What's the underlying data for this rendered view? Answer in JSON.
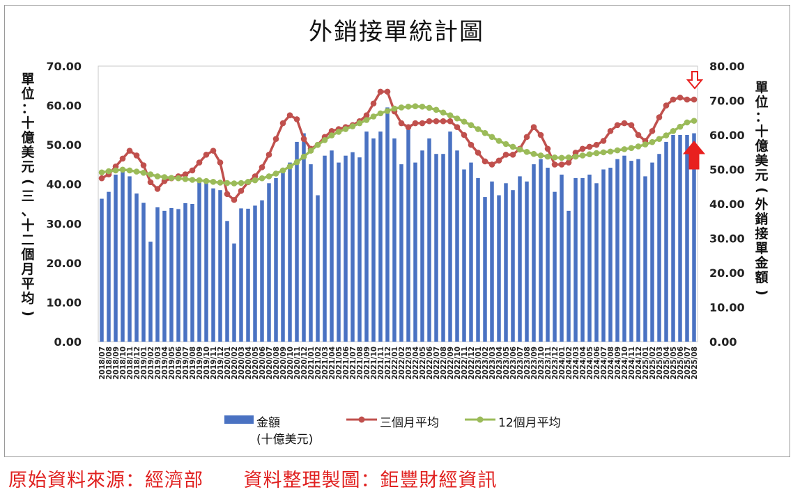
{
  "chart_data": {
    "type": "bar",
    "title": "外銷接單統計圖",
    "ylabel_left": "單位：十億美元(三、十二個月平均)",
    "ylabel_right": "單位：十億美元(外銷接單金額)",
    "ylim_left": [
      0,
      70
    ],
    "ylim_right": [
      0,
      80
    ],
    "yticks_left": [
      "0.00",
      "10.00",
      "20.00",
      "30.00",
      "40.00",
      "50.00",
      "60.00",
      "70.00"
    ],
    "yticks_right": [
      "0.00",
      "10.00",
      "20.00",
      "30.00",
      "40.00",
      "50.00",
      "60.00",
      "70.00",
      "80.00"
    ],
    "categories": [
      "2018/07",
      "2018/08",
      "2018/09",
      "2018/10",
      "2018/11",
      "2018/12",
      "2019/01",
      "2019/02",
      "2019/03",
      "2019/04",
      "2019/05",
      "2019/06",
      "2019/07",
      "2019/08",
      "2019/09",
      "2019/10",
      "2019/11",
      "2019/12",
      "2020/01",
      "2020/02",
      "2020/03",
      "2020/04",
      "2020/05",
      "2020/06",
      "2020/07",
      "2020/08",
      "2020/09",
      "2020/10",
      "2020/11",
      "2020/12",
      "2021/01",
      "2021/02",
      "2021/03",
      "2021/04",
      "2021/05",
      "2021/06",
      "2021/07",
      "2021/08",
      "2021/09",
      "2021/10",
      "2021/11",
      "2021/12",
      "2022/01",
      "2022/02",
      "2022/03",
      "2022/04",
      "2022/05",
      "2022/06",
      "2022/07",
      "2022/08",
      "2022/09",
      "2022/10",
      "2022/11",
      "2022/12",
      "2023/01",
      "2023/02",
      "2023/03",
      "2023/04",
      "2023/05",
      "2023/06",
      "2023/07",
      "2023/08",
      "2023/09",
      "2023/10",
      "2023/11",
      "2023/12",
      "2024/01",
      "2024/02",
      "2024/03",
      "2024/04",
      "2024/05",
      "2024/06",
      "2024/07",
      "2024/08",
      "2024/09",
      "2024/10",
      "2024/11",
      "2024/12",
      "2025/01",
      "2025/02",
      "2025/03",
      "2025/04",
      "2025/05",
      "2025/06",
      "2025/07",
      "2025/08"
    ],
    "series": [
      {
        "name": "金額 (十億美元)",
        "axis": "right",
        "type": "bar",
        "color": "#4a72c2",
        "values": [
          41.5,
          43.5,
          48.5,
          49.5,
          48,
          43,
          40.3,
          29,
          39,
          38,
          38.8,
          38.5,
          40.2,
          40,
          47,
          46,
          44.5,
          44,
          35,
          28.5,
          38.7,
          38.6,
          39.5,
          41,
          46,
          47.5,
          50,
          52,
          58,
          60.5,
          51.5,
          42.5,
          54,
          55.5,
          52,
          54,
          55,
          53.5,
          61,
          59,
          61,
          68,
          59,
          51.5,
          63,
          52,
          55.5,
          59,
          54.5,
          54.5,
          61,
          55.5,
          50,
          52,
          47.5,
          42,
          46.5,
          42.5,
          46,
          44,
          48,
          46.5,
          51.5,
          53,
          50.5,
          43.5,
          48.5,
          38,
          47.5,
          47.5,
          48.5,
          46,
          50,
          50.5,
          53,
          54,
          52.5,
          53,
          48,
          52,
          54.5,
          58,
          60,
          60,
          60,
          60.5
        ]
      },
      {
        "name": "三個月平均",
        "axis": "left",
        "type": "line",
        "color": "#c0504d",
        "values": [
          41.5,
          42.5,
          44.5,
          46.5,
          48.5,
          47.3,
          44.8,
          40.5,
          38.8,
          40.8,
          41.5,
          42,
          42.5,
          43.5,
          45.5,
          47.5,
          48.5,
          45.5,
          37.5,
          36,
          38.3,
          40.5,
          42,
          44.3,
          47.5,
          51.5,
          55.5,
          57.5,
          56.5,
          51.5,
          49,
          50,
          52,
          53.5,
          54,
          54.5,
          55,
          56,
          57.5,
          60.5,
          63.5,
          63.5,
          58.5,
          55.5,
          54.5,
          55.5,
          55.5,
          56,
          56,
          56,
          56,
          54.5,
          52.5,
          50,
          48,
          45.8,
          45,
          46,
          47.5,
          47.5,
          49,
          52,
          54.5,
          52.5,
          49,
          45,
          45,
          45.5,
          48,
          49,
          49.5,
          50,
          51,
          53.5,
          55,
          55.5,
          55,
          52.5,
          51,
          53.5,
          57,
          60,
          61.5,
          62,
          61.5,
          61.5
        ]
      },
      {
        "name": "12個月平均",
        "axis": "left",
        "type": "line",
        "color": "#9bbb59",
        "values": [
          43,
          43.3,
          43.5,
          43.7,
          43.5,
          43.2,
          42.9,
          42.5,
          42,
          41.8,
          41.6,
          41.5,
          41.3,
          41.1,
          41,
          40.8,
          40.6,
          40.4,
          40.3,
          40.2,
          40.3,
          40.6,
          41,
          41.5,
          42,
          42.7,
          43.5,
          44.5,
          45.6,
          47,
          48.5,
          50,
          51.2,
          52.4,
          53.3,
          54,
          54.7,
          55.5,
          56.3,
          57.2,
          58,
          58.6,
          59.2,
          59.5,
          59.7,
          59.8,
          59.7,
          59.4,
          58.9,
          58.2,
          57.5,
          56.7,
          55.9,
          55,
          54,
          53,
          52,
          51,
          50.2,
          49.5,
          48.8,
          48.2,
          47.7,
          47.3,
          47,
          46.8,
          46.7,
          46.8,
          47,
          47.3,
          47.6,
          47.9,
          48.1,
          48.3,
          48.6,
          48.9,
          49.2,
          49.6,
          50.1,
          50.7,
          51.5,
          52.4,
          53.5,
          54.6,
          55.7,
          56.1
        ]
      }
    ],
    "legend": {
      "bar_label_line1": "金額",
      "bar_label_line2": "(十億美元)",
      "line1_label": "三個月平均",
      "line2_label": "12個月平均",
      "placement": "bottom"
    },
    "annotations": {
      "arrows": [
        "down-arrow-outline at 3-month series end",
        "up-arrow at 12-month series end"
      ],
      "arrow_color": "#e8201f"
    },
    "grid": false
  },
  "footer": {
    "source": "原始資料來源：經濟部",
    "compiled": "資料整理製圖：鉅豐財經資訊"
  }
}
